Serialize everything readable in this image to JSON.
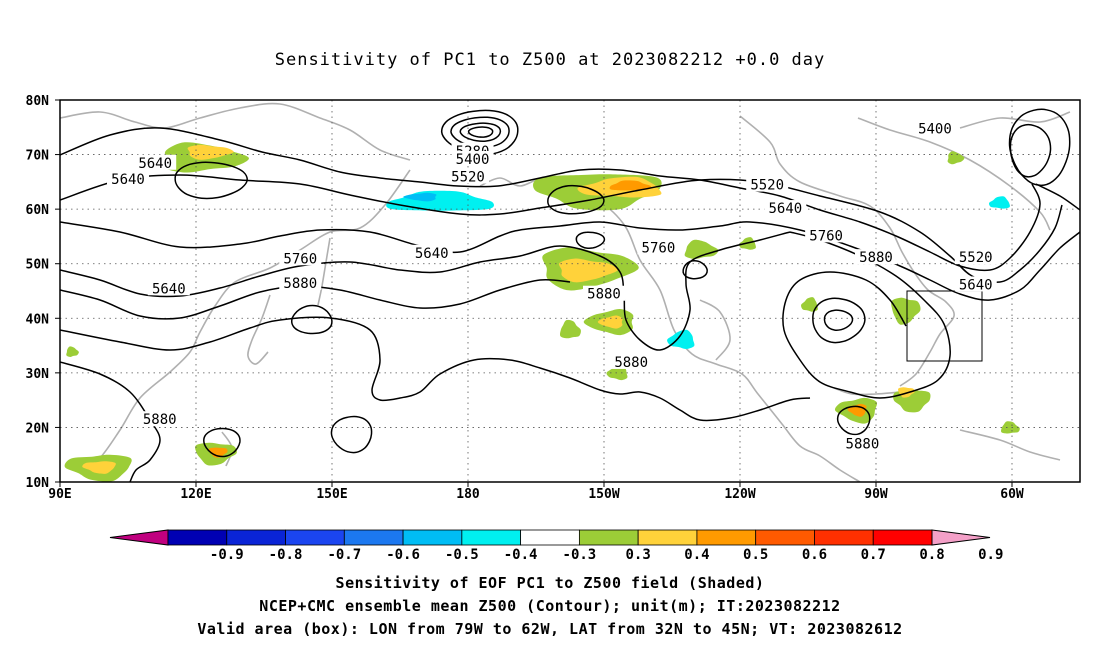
{
  "title": "Sensitivity of PC1 to Z500 at 2023082212 +0.0 day",
  "map": {
    "lat_labels": [
      "80N",
      "70N",
      "60N",
      "50N",
      "40N",
      "30N",
      "20N",
      "10N"
    ],
    "lon_labels": [
      "90E",
      "120E",
      "150E",
      "180",
      "150W",
      "120W",
      "90W",
      "60W"
    ],
    "contour_labels": [
      {
        "text": "5640",
        "lon": 111,
        "lat": 68.5
      },
      {
        "text": "5640",
        "lon": 105,
        "lat": 65.5
      },
      {
        "text": "5280",
        "lon": 181,
        "lat": 70.7
      },
      {
        "text": "5400",
        "lon": 181,
        "lat": 69.2
      },
      {
        "text": "5520",
        "lon": 180,
        "lat": 66
      },
      {
        "text": "5640",
        "lon": 172,
        "lat": 52
      },
      {
        "text": "5760",
        "lon": 143,
        "lat": 51
      },
      {
        "text": "5880",
        "lon": 143,
        "lat": 46.5
      },
      {
        "text": "5640",
        "lon": 114,
        "lat": 45.5
      },
      {
        "text": "5760",
        "lon": 222,
        "lat": 53
      },
      {
        "text": "5880",
        "lon": 210,
        "lat": 44.5
      },
      {
        "text": "5880",
        "lon": 216,
        "lat": 32
      },
      {
        "text": "5880",
        "lon": 112,
        "lat": 21.5
      },
      {
        "text": "5400",
        "lon": 283,
        "lat": 74.8
      },
      {
        "text": "5520",
        "lon": 246,
        "lat": 64.5
      },
      {
        "text": "5640",
        "lon": 250,
        "lat": 60.2
      },
      {
        "text": "5760",
        "lon": 259,
        "lat": 55.2
      },
      {
        "text": "5880",
        "lon": 270,
        "lat": 51.2
      },
      {
        "text": "5520",
        "lon": 292,
        "lat": 51.2
      },
      {
        "text": "5640",
        "lon": 292,
        "lat": 46.2
      },
      {
        "text": "5880",
        "lon": 267,
        "lat": 17.1
      }
    ]
  },
  "colorbar": {
    "tick_labels": [
      "-0.9",
      "-0.8",
      "-0.7",
      "-0.6",
      "-0.5",
      "-0.4",
      "-0.3",
      "0.3",
      "0.4",
      "0.5",
      "0.6",
      "0.7",
      "0.8",
      "0.9"
    ],
    "colors": [
      "#c0007f",
      "#0000b3",
      "#0a24d6",
      "#1b45f0",
      "#1c78f0",
      "#00bdf5",
      "#00f0f0",
      "#ffffff",
      "#9ccd37",
      "#ffd23a",
      "#ff9a00",
      "#ff5a00",
      "#ff3000",
      "#ff0000",
      "#f4a0c8"
    ]
  },
  "captions": [
    "Sensitivity of EOF PC1 to Z500 field (Shaded)",
    "NCEP+CMC ensemble mean Z500 (Contour); unit(m); IT:2023082212",
    "Valid area (box): LON from 79W to 62W, LAT from 32N to 45N; VT: 2023082612"
  ]
}
